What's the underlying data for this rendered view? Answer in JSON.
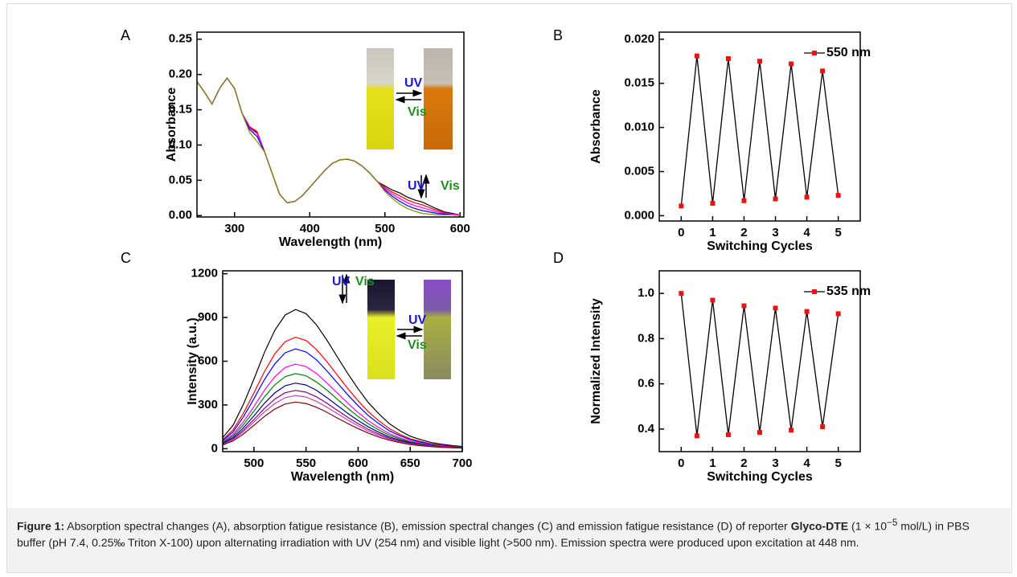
{
  "chart_data": [
    {
      "type": "line",
      "label": "A",
      "xlabel": "Wavelength (nm)",
      "ylabel": "Absorbance",
      "x": [
        250,
        260,
        270,
        280,
        290,
        300,
        310,
        320,
        330,
        340,
        350,
        360,
        370,
        380,
        390,
        400,
        410,
        420,
        430,
        440,
        450,
        460,
        470,
        480,
        490,
        500,
        510,
        520,
        530,
        540,
        550,
        560,
        570,
        580,
        590,
        600
      ],
      "series": [
        {
          "color": "#000000",
          "values": [
            0.19,
            0.175,
            0.158,
            0.18,
            0.195,
            0.18,
            0.145,
            0.125,
            0.118,
            0.09,
            0.06,
            0.03,
            0.018,
            0.02,
            0.028,
            0.04,
            0.052,
            0.064,
            0.074,
            0.079,
            0.08,
            0.077,
            0.07,
            0.06,
            0.048,
            0.042,
            0.036,
            0.032,
            0.026,
            0.022,
            0.019,
            0.014,
            0.009,
            0.005,
            0.003,
            0.001
          ]
        },
        {
          "color": "#ff0000",
          "values": [
            0.19,
            0.175,
            0.158,
            0.18,
            0.195,
            0.18,
            0.145,
            0.126,
            0.119,
            0.09,
            0.06,
            0.03,
            0.018,
            0.02,
            0.028,
            0.04,
            0.052,
            0.064,
            0.074,
            0.079,
            0.08,
            0.077,
            0.07,
            0.06,
            0.048,
            0.04,
            0.033,
            0.028,
            0.022,
            0.018,
            0.015,
            0.011,
            0.007,
            0.004,
            0.002,
            0.001
          ]
        },
        {
          "color": "#ff00ff",
          "values": [
            0.19,
            0.175,
            0.158,
            0.18,
            0.195,
            0.18,
            0.145,
            0.124,
            0.116,
            0.09,
            0.06,
            0.03,
            0.018,
            0.02,
            0.028,
            0.04,
            0.052,
            0.064,
            0.074,
            0.079,
            0.08,
            0.077,
            0.07,
            0.06,
            0.048,
            0.038,
            0.03,
            0.024,
            0.018,
            0.014,
            0.011,
            0.008,
            0.005,
            0.003,
            0.002,
            0.001
          ]
        },
        {
          "color": "#0000ff",
          "values": [
            0.19,
            0.175,
            0.158,
            0.18,
            0.195,
            0.18,
            0.145,
            0.122,
            0.112,
            0.09,
            0.06,
            0.03,
            0.018,
            0.02,
            0.028,
            0.04,
            0.052,
            0.064,
            0.074,
            0.079,
            0.08,
            0.077,
            0.07,
            0.06,
            0.048,
            0.036,
            0.027,
            0.02,
            0.014,
            0.01,
            0.007,
            0.005,
            0.003,
            0.002,
            0.001,
            0
          ]
        },
        {
          "color": "#8b8b00",
          "values": [
            0.19,
            0.175,
            0.158,
            0.18,
            0.195,
            0.18,
            0.145,
            0.118,
            0.105,
            0.09,
            0.06,
            0.03,
            0.018,
            0.02,
            0.028,
            0.04,
            0.052,
            0.064,
            0.074,
            0.079,
            0.08,
            0.077,
            0.07,
            0.06,
            0.048,
            0.034,
            0.024,
            0.016,
            0.01,
            0.006,
            0.003,
            0.002,
            0.001,
            0.001,
            0.001,
            0
          ]
        }
      ],
      "xlim": [
        250,
        605
      ],
      "ylim": [
        -0.002,
        0.26
      ],
      "xticks": [
        300,
        400,
        500,
        600
      ],
      "yticks": [
        {
          "value": 0,
          "label": "0.00"
        },
        {
          "value": 0.05,
          "label": "0.05"
        },
        {
          "value": 0.1,
          "label": "0.10"
        },
        {
          "value": 0.15,
          "label": "0.15"
        },
        {
          "value": 0.2,
          "label": "0.20"
        },
        {
          "value": 0.25,
          "label": "0.25"
        }
      ],
      "annotations": [
        {
          "text": "UV",
          "color": "#1a1ad6"
        },
        {
          "text": "Vis",
          "color": "#1e8c1e"
        },
        {
          "text": "UV",
          "color": "#1a1ad6"
        },
        {
          "text": "Vis",
          "color": "#1e8c1e"
        }
      ]
    },
    {
      "type": "line",
      "label": "B",
      "xlabel": "Switching Cycles",
      "ylabel": "Absorbance",
      "x": [
        0,
        0.5,
        1,
        1.5,
        2,
        2.5,
        3,
        3.5,
        4,
        4.5,
        5
      ],
      "series": [
        {
          "name": "550 nm",
          "color": "#000000",
          "marker_color": "#ee1111",
          "values": [
            0.0011,
            0.0181,
            0.0014,
            0.0178,
            0.0017,
            0.0175,
            0.0019,
            0.0172,
            0.0021,
            0.0164,
            0.0023
          ]
        }
      ],
      "xlim": [
        -0.7,
        5.7
      ],
      "ylim": [
        -0.0006,
        0.0208
      ],
      "xticks": [
        0,
        1,
        2,
        3,
        4,
        5
      ],
      "yticks": [
        {
          "value": 0,
          "label": "0.000"
        },
        {
          "value": 0.005,
          "label": "0.005"
        },
        {
          "value": 0.01,
          "label": "0.010"
        },
        {
          "value": 0.015,
          "label": "0.015"
        },
        {
          "value": 0.02,
          "label": "0.020"
        }
      ]
    },
    {
      "type": "line",
      "label": "C",
      "xlabel": "Wavelength (nm)",
      "ylabel": "Intensity (a.u.)",
      "x": [
        470,
        480,
        490,
        500,
        510,
        520,
        530,
        540,
        550,
        560,
        570,
        580,
        590,
        600,
        610,
        620,
        630,
        640,
        650,
        660,
        670,
        680,
        690,
        700
      ],
      "series": [
        {
          "color": "#000000",
          "values": [
            76,
            162,
            306,
            478,
            659,
            812,
            917,
            955,
            926,
            850,
            745,
            630,
            516,
            411,
            315,
            239,
            172,
            124,
            86,
            62,
            43,
            31,
            22,
            15
          ]
        },
        {
          "color": "#ff0000",
          "values": [
            61,
            130,
            245,
            383,
            528,
            650,
            734,
            765,
            742,
            681,
            597,
            505,
            413,
            329,
            252,
            191,
            138,
            99,
            69,
            50,
            34,
            24,
            18,
            12
          ]
        },
        {
          "color": "#0000ff",
          "values": [
            55,
            116,
            219,
            343,
            473,
            582,
            658,
            685,
            664,
            610,
            534,
            452,
            370,
            295,
            226,
            171,
            123,
            89,
            62,
            45,
            31,
            22,
            16,
            11
          ]
        },
        {
          "color": "#ff00ff",
          "values": [
            46,
            99,
            186,
            290,
            400,
            493,
            557,
            580,
            563,
            516,
            452,
            383,
            313,
            249,
            191,
            145,
            104,
            75,
            52,
            38,
            26,
            19,
            13,
            9
          ]
        },
        {
          "color": "#008000",
          "values": [
            41,
            88,
            165,
            258,
            355,
            438,
            494,
            515,
            500,
            458,
            402,
            340,
            278,
            221,
            170,
            129,
            93,
            67,
            46,
            33,
            23,
            16,
            12,
            8
          ]
        },
        {
          "color": "#000080",
          "values": [
            36,
            77,
            144,
            225,
            311,
            383,
            432,
            450,
            437,
            401,
            351,
            297,
            243,
            194,
            149,
            113,
            81,
            59,
            41,
            29,
            20,
            14,
            10,
            7
          ]
        },
        {
          "color": "#800080",
          "values": [
            32,
            68,
            128,
            200,
            276,
            340,
            384,
            400,
            388,
            356,
            312,
            264,
            216,
            172,
            132,
            100,
            72,
            52,
            36,
            26,
            18,
            13,
            9,
            6
          ]
        },
        {
          "color": "#c040c0",
          "values": [
            29,
            62,
            117,
            183,
            252,
            310,
            350,
            365,
            354,
            325,
            285,
            241,
            197,
            157,
            120,
            91,
            66,
            47,
            33,
            24,
            16,
            12,
            8,
            6
          ]
        },
        {
          "color": "#800000",
          "values": [
            26,
            54,
            102,
            160,
            221,
            272,
            307,
            320,
            310,
            285,
            250,
            211,
            173,
            138,
            106,
            80,
            58,
            42,
            29,
            21,
            14,
            10,
            7,
            5
          ]
        }
      ],
      "xlim": [
        470,
        700
      ],
      "ylim": [
        -20,
        1220
      ],
      "xticks": [
        500,
        550,
        600,
        650,
        700
      ],
      "yticks": [
        0,
        300,
        600,
        900,
        1200
      ],
      "annotations": [
        {
          "text": "UV",
          "color": "#1a1ad6"
        },
        {
          "text": "Vis",
          "color": "#1e8c1e"
        },
        {
          "text": "UV",
          "color": "#1a1ad6"
        },
        {
          "text": "Vis",
          "color": "#1e8c1e"
        }
      ]
    },
    {
      "type": "line",
      "label": "D",
      "xlabel": "Switching Cycles",
      "ylabel": "Normalized Intensity",
      "x": [
        0,
        0.5,
        1,
        1.5,
        2,
        2.5,
        3,
        3.5,
        4,
        4.5,
        5
      ],
      "series": [
        {
          "name": "535 nm",
          "color": "#000000",
          "marker_color": "#ee1111",
          "values": [
            1,
            0.37,
            0.97,
            0.375,
            0.945,
            0.385,
            0.935,
            0.395,
            0.92,
            0.41,
            0.91
          ]
        }
      ],
      "xlim": [
        -0.7,
        5.7
      ],
      "ylim": [
        0.3,
        1.1
      ],
      "xticks": [
        0,
        1,
        2,
        3,
        4,
        5
      ],
      "yticks": [
        0.4,
        0.6,
        0.8,
        {
          "value": 1,
          "label": "1.0"
        }
      ]
    }
  ],
  "caption": {
    "label": "Figure 1:",
    "text": " Absorption spectral changes (A), absorption fatigue resistance (B), emission spectral changes (C) and emission fatigue resistance (D) of reporter ",
    "bold": "Glyco-DTE",
    "text2": " (1 × 10",
    "superscript": "−5",
    "text3": " mol/L) in PBS buffer (pH 7.4, 0.25‰ Triton X-100) upon alternating irradiation with UV (254 nm) and visible light (>500 nm). Emission spectra were produced upon excitation at 448 nm."
  }
}
